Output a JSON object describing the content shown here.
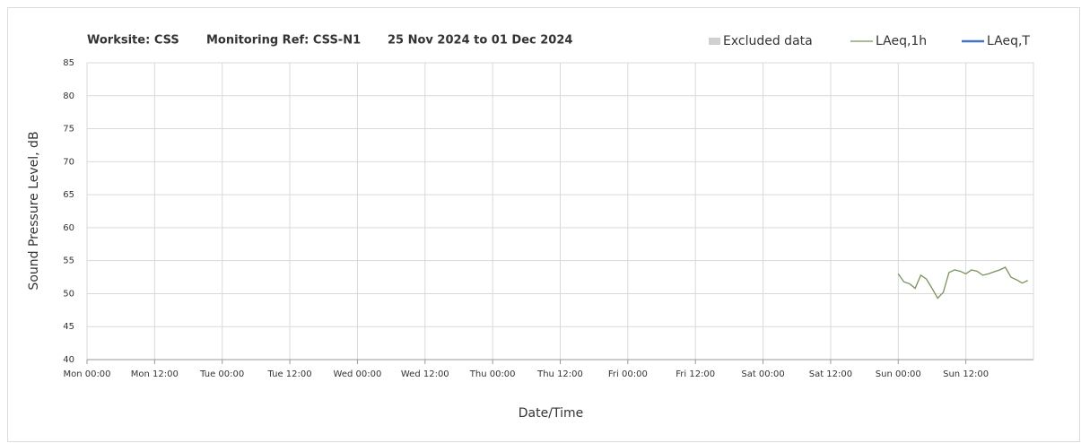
{
  "chart_data": {
    "type": "line",
    "title_parts": [
      "Worksite: CSS",
      "Monitoring Ref: CSS-N1",
      "25 Nov 2024 to 01 Dec 2024"
    ],
    "x_label": "Date/Time",
    "y_label": "Sound Pressure Level, dB",
    "excluded": {
      "name": "Excluded data",
      "color": "#d0d0d0"
    },
    "x": [
      144,
      145,
      146,
      147,
      148,
      149,
      150,
      151,
      152,
      153,
      154,
      155,
      156,
      157,
      158,
      159,
      160,
      161,
      162,
      163,
      164,
      165,
      166,
      167
    ],
    "series": [
      {
        "name": "LAeq,1h",
        "color": "#76935a",
        "values": [
          53,
          51.8,
          51.5,
          50.8,
          52.8,
          52.2,
          50.8,
          49.3,
          50.2,
          53.2,
          53.6,
          53.4,
          53,
          53.6,
          53.4,
          52.8,
          53,
          53.3,
          53.6,
          54,
          52.5,
          52.1,
          51.6,
          52
        ]
      },
      {
        "name": "LAeq,T",
        "color": "#4472c4",
        "values": [
          null,
          null,
          null,
          null,
          null,
          null,
          null,
          null,
          null,
          null,
          null,
          null,
          null,
          null,
          null,
          null,
          null,
          null,
          null,
          null,
          null,
          null,
          null,
          null
        ]
      }
    ],
    "xlim": [
      0,
      168
    ],
    "xticks": [
      {
        "value": 0,
        "label": "Mon 00:00"
      },
      {
        "value": 12,
        "label": "Mon 12:00"
      },
      {
        "value": 24,
        "label": "Tue 00:00"
      },
      {
        "value": 36,
        "label": "Tue 12:00"
      },
      {
        "value": 48,
        "label": "Wed 00:00"
      },
      {
        "value": 60,
        "label": "Wed 12:00"
      },
      {
        "value": 72,
        "label": "Thu 00:00"
      },
      {
        "value": 84,
        "label": "Thu 12:00"
      },
      {
        "value": 96,
        "label": "Fri 00:00"
      },
      {
        "value": 108,
        "label": "Fri 12:00"
      },
      {
        "value": 120,
        "label": "Sat 00:00"
      },
      {
        "value": 132,
        "label": "Sat 12:00"
      },
      {
        "value": 144,
        "label": "Sun 00:00"
      },
      {
        "value": 156,
        "label": "Sun 12:00"
      }
    ],
    "ylim": [
      40,
      85
    ],
    "yticks": [
      40,
      45,
      50,
      55,
      60,
      65,
      70,
      75,
      80,
      85
    ],
    "grid": true
  }
}
